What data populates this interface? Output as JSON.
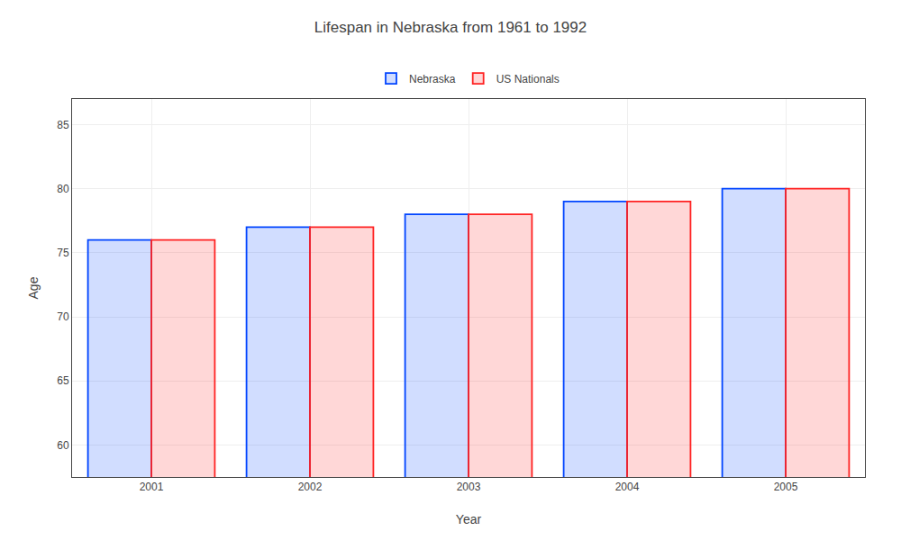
{
  "chart_data": {
    "type": "bar",
    "title": "Lifespan in Nebraska from 1961 to 1992",
    "xlabel": "Year",
    "ylabel": "Age",
    "categories": [
      "2001",
      "2002",
      "2003",
      "2004",
      "2005"
    ],
    "series": [
      {
        "name": "Nebraska",
        "color": "#0044ff",
        "values": [
          76,
          77,
          78,
          79,
          80
        ]
      },
      {
        "name": "US Nationals",
        "color": "#ff2222",
        "values": [
          76,
          77,
          78,
          79,
          80
        ]
      }
    ],
    "ylim": [
      57.5,
      87
    ],
    "yticks": [
      60,
      65,
      70,
      75,
      80,
      85
    ],
    "grid": true,
    "legend": "top"
  }
}
